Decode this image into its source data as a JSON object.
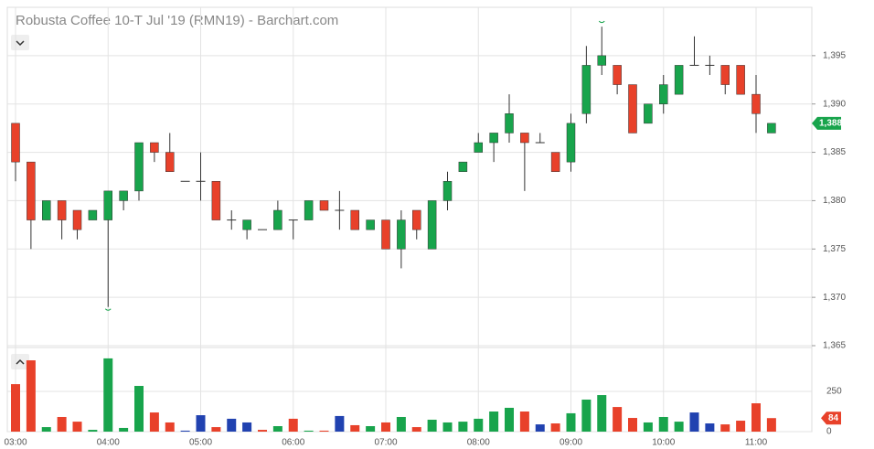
{
  "chart_data": {
    "type": "candlestick",
    "title": "Robusta Coffee 10-T Jul '19 (RMN19) - Barchart.com",
    "x": [
      "03:00",
      "03:10",
      "03:20",
      "03:30",
      "03:40",
      "03:50",
      "04:00",
      "04:10",
      "04:20",
      "04:30",
      "04:40",
      "04:50",
      "05:00",
      "05:10",
      "05:20",
      "05:30",
      "05:40",
      "05:50",
      "06:00",
      "06:10",
      "06:20",
      "06:30",
      "06:40",
      "06:50",
      "07:00",
      "07:10",
      "07:20",
      "07:30",
      "07:40",
      "07:50",
      "08:00",
      "08:10",
      "08:20",
      "08:30",
      "08:40",
      "08:50",
      "09:00",
      "09:10",
      "09:20",
      "09:30",
      "09:40",
      "09:50",
      "10:00",
      "10:10",
      "10:20",
      "10:30",
      "10:40",
      "10:50",
      "11:00",
      "11:10"
    ],
    "open": [
      1388,
      1384,
      1378,
      1380,
      1379,
      1378,
      1378,
      1380,
      1381,
      1386,
      1385,
      1382,
      1382,
      1382,
      1378,
      1377,
      1377,
      1377,
      1378,
      1378,
      1380,
      1379,
      1379,
      1377,
      1378,
      1375,
      1379,
      1375,
      1380,
      1383,
      1385,
      1386,
      1387,
      1387,
      1386,
      1385,
      1384,
      1389,
      1394,
      1394,
      1392,
      1388,
      1390,
      1391,
      1394,
      1394,
      1394,
      1394,
      1391,
      1387
    ],
    "high": [
      1388,
      1384,
      1380,
      1380,
      1379,
      1379,
      1381,
      1381,
      1386,
      1386,
      1387,
      1382,
      1385,
      1382,
      1379,
      1378,
      1377,
      1380,
      1378,
      1380,
      1380,
      1381,
      1379,
      1378,
      1378,
      1379,
      1379,
      1380,
      1383,
      1384,
      1387,
      1387,
      1391,
      1387,
      1387,
      1385,
      1389,
      1396,
      1398,
      1394,
      1392,
      1390,
      1393,
      1394,
      1397,
      1395,
      1394,
      1394,
      1393,
      1388
    ],
    "low": [
      1382,
      1375,
      1378,
      1376,
      1376,
      1378,
      1369,
      1379,
      1380,
      1384,
      1383,
      1382,
      1380,
      1378,
      1377,
      1376,
      1377,
      1377,
      1376,
      1378,
      1379,
      1377,
      1377,
      1377,
      1375,
      1373,
      1376,
      1375,
      1379,
      1383,
      1385,
      1384,
      1386,
      1381,
      1386,
      1383,
      1383,
      1388,
      1393,
      1391,
      1387,
      1388,
      1389,
      1391,
      1394,
      1393,
      1391,
      1391,
      1387,
      1387
    ],
    "close": [
      1384,
      1378,
      1380,
      1378,
      1377,
      1379,
      1381,
      1381,
      1386,
      1385,
      1383,
      1382,
      1382,
      1378,
      1378,
      1378,
      1377,
      1379,
      1378,
      1380,
      1379,
      1379,
      1377,
      1378,
      1375,
      1378,
      1377,
      1380,
      1382,
      1384,
      1386,
      1387,
      1389,
      1386,
      1386,
      1383,
      1388,
      1394,
      1395,
      1392,
      1387,
      1390,
      1392,
      1394,
      1394,
      1394,
      1392,
      1391,
      1389,
      1388
    ],
    "up_color": "#18a44c",
    "down_color": "#e8412a",
    "ylim": [
      1365,
      1400
    ],
    "yticks": [
      {
        "value": 1365,
        "label": "1,365"
      },
      {
        "value": 1370,
        "label": "1,370"
      },
      {
        "value": 1375,
        "label": "1,375"
      },
      {
        "value": 1380,
        "label": "1,380"
      },
      {
        "value": 1385,
        "label": "1,385"
      },
      {
        "value": 1390,
        "label": "1,390"
      },
      {
        "value": 1395,
        "label": "1,395"
      }
    ],
    "xticks": [
      "03:00",
      "04:00",
      "05:00",
      "06:00",
      "07:00",
      "08:00",
      "09:00",
      "10:00",
      "11:00"
    ],
    "last_price": {
      "value": 1388,
      "label": "1,388"
    },
    "grid": true,
    "volume": {
      "type": "bar",
      "values": [
        295,
        443,
        28,
        91,
        62,
        11,
        455,
        23,
        284,
        119,
        57,
        6,
        102,
        28,
        80,
        57,
        11,
        34,
        80,
        6,
        6,
        97,
        40,
        34,
        57,
        91,
        28,
        74,
        57,
        62,
        80,
        125,
        148,
        125,
        45,
        51,
        114,
        199,
        227,
        153,
        85,
        57,
        91,
        62,
        119,
        51,
        45,
        68,
        176,
        84
      ],
      "colors": [
        "#e8412a",
        "#e8412a",
        "#18a44c",
        "#e8412a",
        "#e8412a",
        "#18a44c",
        "#18a44c",
        "#18a44c",
        "#18a44c",
        "#e8412a",
        "#e8412a",
        "#2142b0",
        "#2142b0",
        "#e8412a",
        "#2142b0",
        "#2142b0",
        "#e8412a",
        "#18a44c",
        "#e8412a",
        "#18a44c",
        "#e8412a",
        "#2142b0",
        "#e8412a",
        "#18a44c",
        "#e8412a",
        "#18a44c",
        "#e8412a",
        "#18a44c",
        "#18a44c",
        "#18a44c",
        "#18a44c",
        "#18a44c",
        "#18a44c",
        "#e8412a",
        "#2142b0",
        "#e8412a",
        "#18a44c",
        "#18a44c",
        "#18a44c",
        "#e8412a",
        "#e8412a",
        "#18a44c",
        "#18a44c",
        "#18a44c",
        "#2142b0",
        "#2142b0",
        "#e8412a",
        "#e8412a",
        "#e8412a",
        "#e8412a"
      ],
      "ylim": [
        0,
        500
      ],
      "yticks": [
        0,
        250
      ]
    }
  }
}
